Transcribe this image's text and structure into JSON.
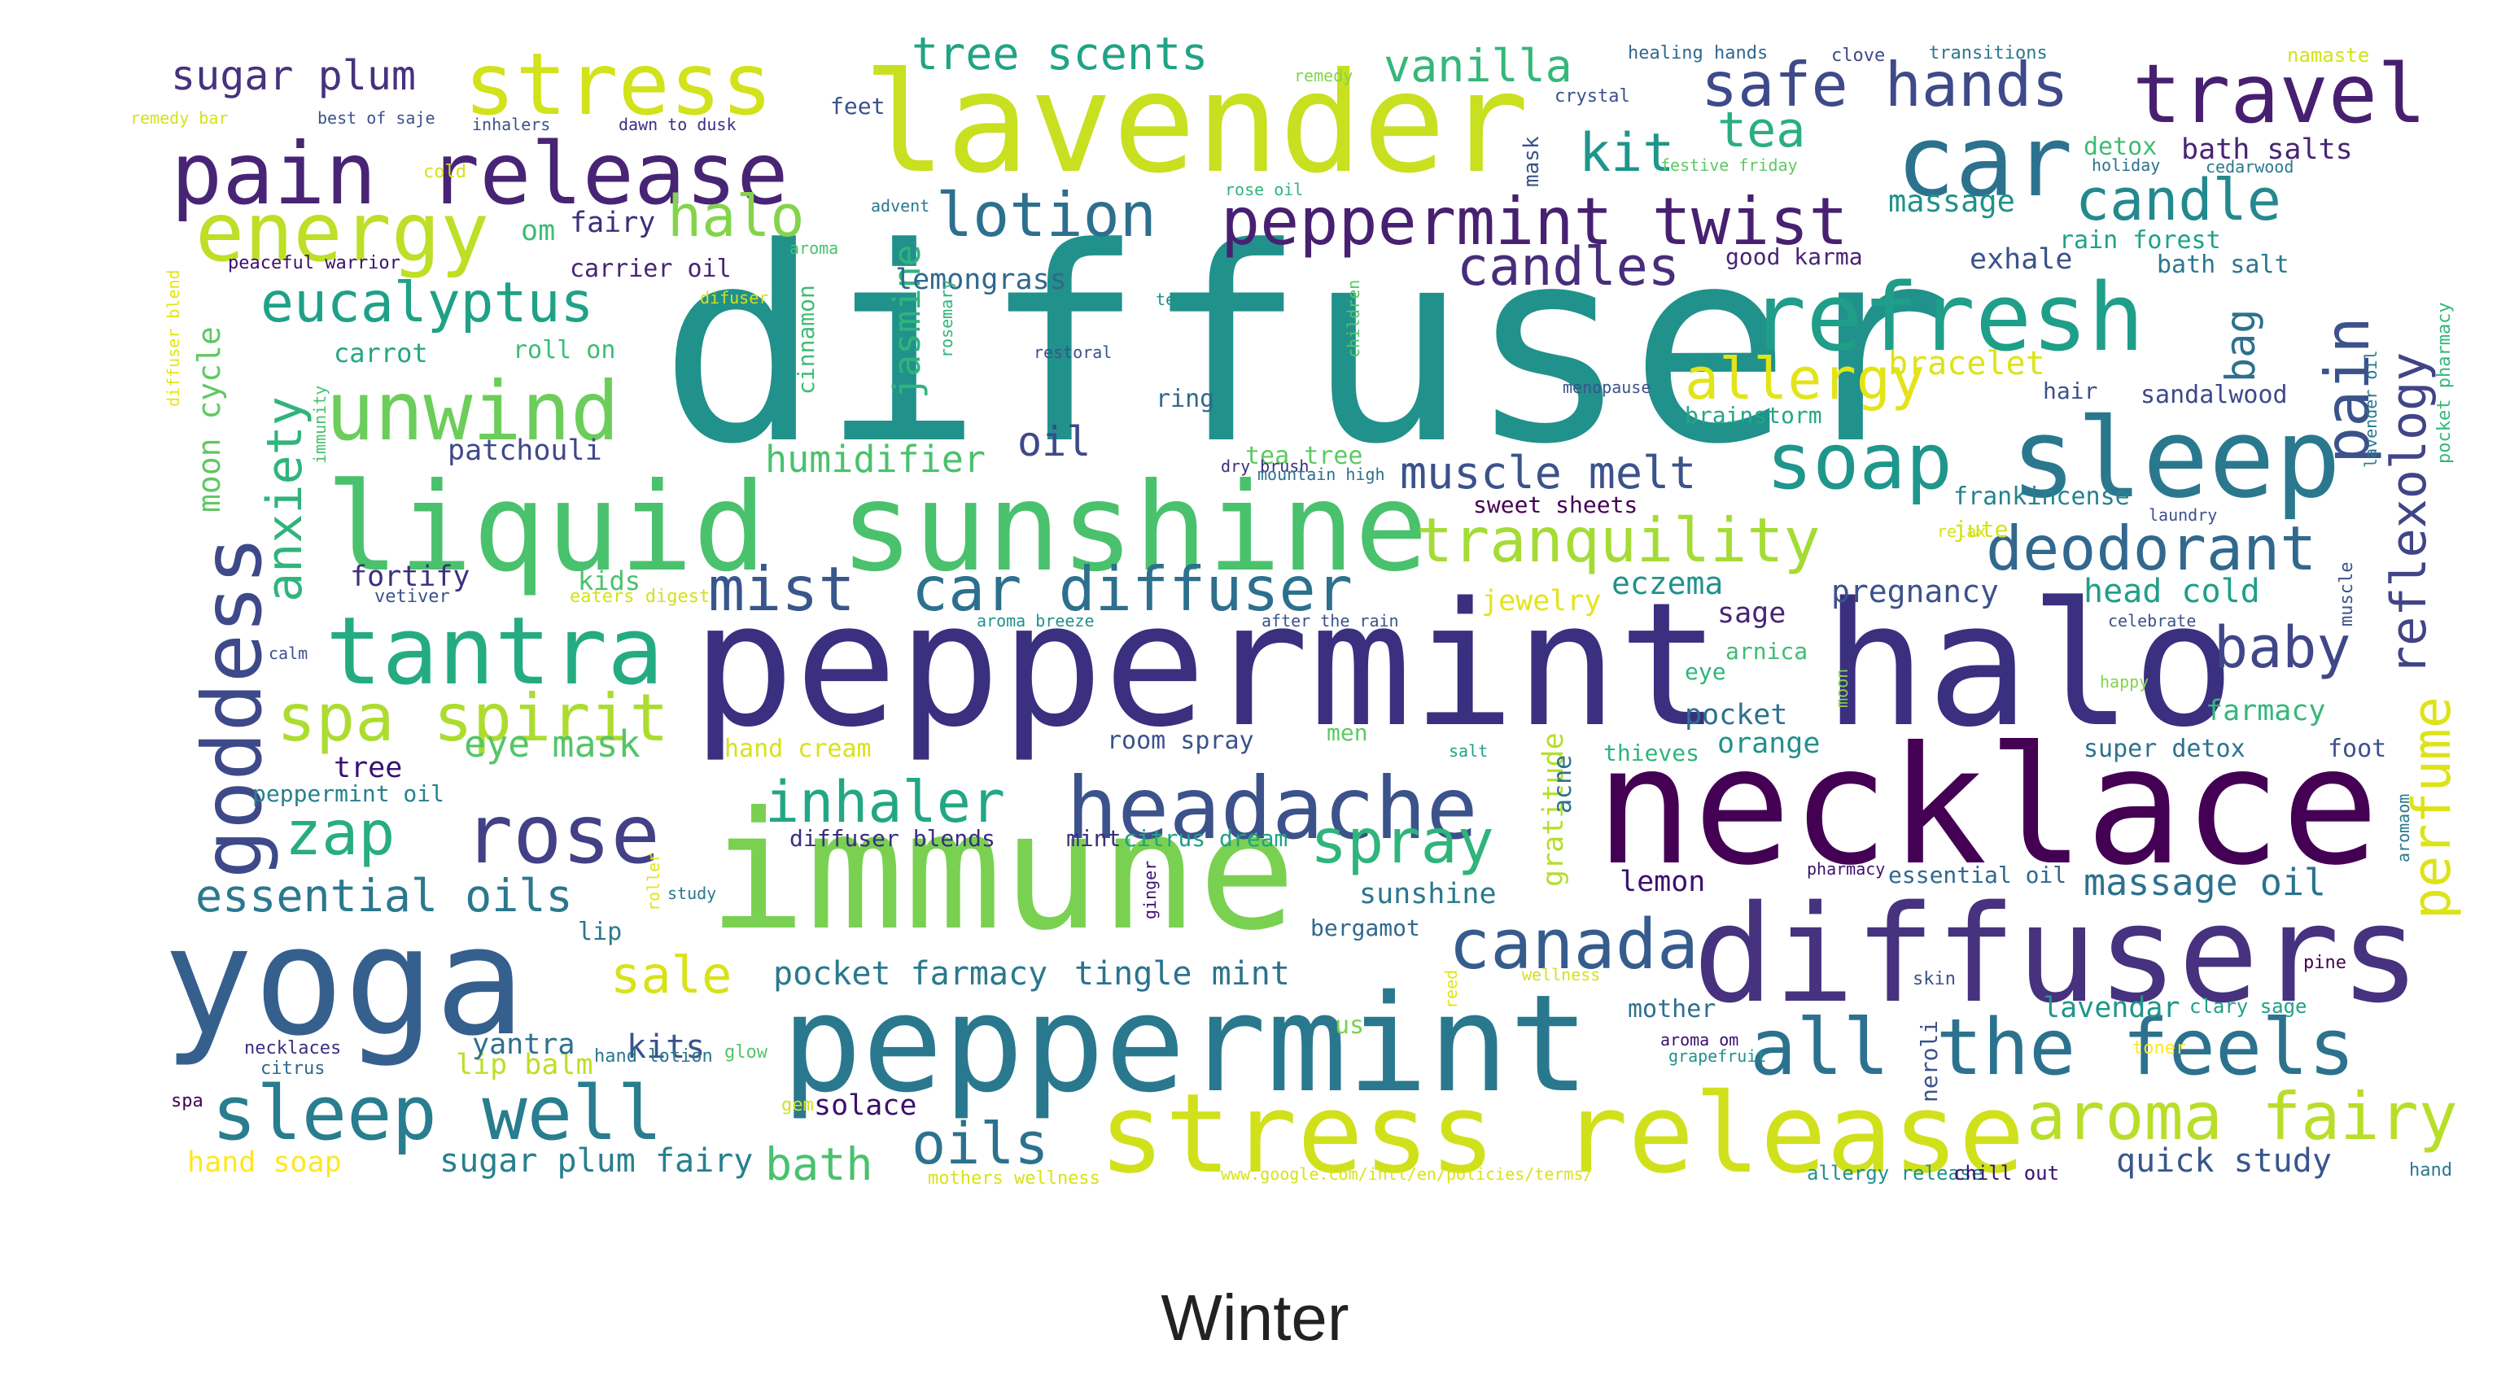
{
  "caption": "Winter",
  "words": [
    {
      "text": "diffuser",
      "color": "#21918c"
    },
    {
      "text": "peppermint halo",
      "color": "#3b2f80"
    },
    {
      "text": "necklace",
      "color": "#440154"
    },
    {
      "text": "immune",
      "color": "#7ad151"
    },
    {
      "text": "yoga",
      "color": "#355f8d"
    },
    {
      "text": "lavender",
      "color": "#c8e020"
    },
    {
      "text": "peppermint",
      "color": "#2a788e"
    },
    {
      "text": "diffusers",
      "color": "#46327e"
    },
    {
      "text": "liquid sunshine",
      "color": "#4ac16d"
    },
    {
      "text": "stress release",
      "color": "#d0e11c"
    },
    {
      "text": "sleep",
      "color": "#2a788e"
    },
    {
      "text": "car",
      "color": "#2c728e"
    },
    {
      "text": "refresh",
      "color": "#1f9e89"
    },
    {
      "text": "tantra",
      "color": "#25ab82"
    },
    {
      "text": "headache",
      "color": "#3b528b"
    },
    {
      "text": "stress",
      "color": "#d2e21b"
    },
    {
      "text": "pain release",
      "color": "#482475"
    },
    {
      "text": "goddess",
      "color": "#3e4989"
    },
    {
      "text": "rose",
      "color": "#424086"
    },
    {
      "text": "travel",
      "color": "#481f70"
    },
    {
      "text": "unwind",
      "color": "#6ccd5a"
    },
    {
      "text": "energy",
      "color": "#bddf26"
    },
    {
      "text": "all the feels",
      "color": "#2c728e"
    },
    {
      "text": "sleep well",
      "color": "#287d8e"
    },
    {
      "text": "canada",
      "color": "#365c8d"
    },
    {
      "text": "soap",
      "color": "#1f968b"
    },
    {
      "text": "aroma fairy",
      "color": "#b8de29"
    },
    {
      "text": "peppermint twist",
      "color": "#482071"
    },
    {
      "text": "safe hands",
      "color": "#3e4a89"
    },
    {
      "text": "deodorant",
      "color": "#31688e"
    },
    {
      "text": "car diffuser",
      "color": "#2d708e"
    },
    {
      "text": "mist",
      "color": "#39568c"
    },
    {
      "text": "spa spirit",
      "color": "#addc30"
    },
    {
      "text": "tranquility",
      "color": "#a5db36"
    },
    {
      "text": "inhaler",
      "color": "#22a785"
    },
    {
      "text": "spray",
      "color": "#2fb47c"
    },
    {
      "text": "perfume",
      "color": "#dde318"
    },
    {
      "text": "reflexology",
      "color": "#414487"
    },
    {
      "text": "pain",
      "color": "#3b528b"
    },
    {
      "text": "zap",
      "color": "#27ad81"
    },
    {
      "text": "lotion",
      "color": "#2d708e"
    },
    {
      "text": "halo",
      "color": "#84d44b"
    },
    {
      "text": "eucalyptus",
      "color": "#1fa187"
    },
    {
      "text": "baby",
      "color": "#404688"
    },
    {
      "text": "allergy",
      "color": "#e2e418"
    },
    {
      "text": "candle",
      "color": "#23898e"
    },
    {
      "text": "tea",
      "color": "#29af7f"
    },
    {
      "text": "kit",
      "color": "#1f958b"
    },
    {
      "text": "oils",
      "color": "#2c728e"
    },
    {
      "text": "muscle melt",
      "color": "#3b528b"
    },
    {
      "text": "candles",
      "color": "#472d7b"
    },
    {
      "text": "essential oils",
      "color": "#2a788e"
    },
    {
      "text": "sale",
      "color": "#d8e219"
    },
    {
      "text": "sugar plum",
      "color": "#46327e"
    },
    {
      "text": "anxiety",
      "color": "#2fb47c"
    },
    {
      "text": "vanilla",
      "color": "#35b779"
    },
    {
      "text": "tree scents",
      "color": "#20a386"
    },
    {
      "text": "bath",
      "color": "#4ac16d"
    },
    {
      "text": "massage oil",
      "color": "#2c728e"
    },
    {
      "text": "jasmine",
      "color": "#2fb47c"
    },
    {
      "text": "bag",
      "color": "#2d708e"
    },
    {
      "text": "quick study",
      "color": "#39568c"
    },
    {
      "text": "eye mask",
      "color": "#54c568"
    },
    {
      "text": "oil",
      "color": "#3e4989"
    },
    {
      "text": "pocket farmacy",
      "color": "#2a788e"
    },
    {
      "text": "tingle mint",
      "color": "#2c728e"
    },
    {
      "text": "sugar plum fairy",
      "color": "#27808e"
    },
    {
      "text": "humidifier",
      "color": "#4ac16d"
    },
    {
      "text": "lemongrass",
      "color": "#31688e"
    },
    {
      "text": "massage",
      "color": "#21918c"
    },
    {
      "text": "bath salts",
      "color": "#482475"
    },
    {
      "text": "bracelet",
      "color": "#dde318"
    },
    {
      "text": "head cold",
      "color": "#1f9e89"
    },
    {
      "text": "eczema",
      "color": "#21918c"
    },
    {
      "text": "pregnancy",
      "color": "#3b528b"
    },
    {
      "text": "lip balm",
      "color": "#bddf26"
    },
    {
      "text": "moon cycle",
      "color": "#5ec962"
    },
    {
      "text": "exhale",
      "color": "#3b528b"
    },
    {
      "text": "farmacy",
      "color": "#35b779"
    },
    {
      "text": "hand soap",
      "color": "#fde725"
    },
    {
      "text": "kits",
      "color": "#3b528b"
    },
    {
      "text": "yantra",
      "color": "#2d708e"
    },
    {
      "text": "sunshine",
      "color": "#2a788e"
    },
    {
      "text": "solace",
      "color": "#3b0f70"
    },
    {
      "text": "patchouli",
      "color": "#3e4989"
    },
    {
      "text": "fortify",
      "color": "#3b2f80"
    },
    {
      "text": "gratitude",
      "color": "#b5de2b"
    },
    {
      "text": "lemon",
      "color": "#3b0f70"
    },
    {
      "text": "jewelry",
      "color": "#e5e419"
    },
    {
      "text": "sage",
      "color": "#482475"
    },
    {
      "text": "pocket",
      "color": "#2d708e"
    },
    {
      "text": "orange",
      "color": "#21918c"
    },
    {
      "text": "lavendar",
      "color": "#1f968b"
    },
    {
      "text": "mother",
      "color": "#2d708e"
    },
    {
      "text": "sandalwood",
      "color": "#3e4989"
    },
    {
      "text": "brainstorm",
      "color": "#22a785"
    },
    {
      "text": "frankincense",
      "color": "#26828e"
    },
    {
      "text": "super detox",
      "color": "#2c728e"
    },
    {
      "text": "foot",
      "color": "#3b528b"
    },
    {
      "text": "detox",
      "color": "#3dbc74"
    },
    {
      "text": "rain forest",
      "color": "#1fa187"
    },
    {
      "text": "bath salt",
      "color": "#2a788e"
    },
    {
      "text": "room spray",
      "color": "#3b528b"
    },
    {
      "text": "diffuser blends",
      "color": "#3b2f80"
    },
    {
      "text": "mint",
      "color": "#3b2f80"
    },
    {
      "text": "citrus dream",
      "color": "#1fa187"
    },
    {
      "text": "essential oil",
      "color": "#31688e"
    },
    {
      "text": "bergamot",
      "color": "#31688e"
    },
    {
      "text": "lip",
      "color": "#2a788e"
    },
    {
      "text": "tree",
      "color": "#3b0f70"
    },
    {
      "text": "peppermint oil",
      "color": "#27808e"
    },
    {
      "text": "hand cream",
      "color": "#d8e219"
    },
    {
      "text": "carrier oil",
      "color": "#482475"
    },
    {
      "text": "fairy",
      "color": "#3b2f80"
    },
    {
      "text": "om",
      "color": "#3dbc74"
    },
    {
      "text": "carrot",
      "color": "#22a785"
    },
    {
      "text": "roll on",
      "color": "#3dbc74"
    },
    {
      "text": "kids",
      "color": "#4ac16d"
    },
    {
      "text": "acne",
      "color": "#2c728e"
    },
    {
      "text": "thieves",
      "color": "#2fb47c"
    },
    {
      "text": "arnica",
      "color": "#3dbc74"
    },
    {
      "text": "eye",
      "color": "#2fb47c"
    },
    {
      "text": "tea tree",
      "color": "#5ec962"
    },
    {
      "text": "ring",
      "color": "#31688e"
    },
    {
      "text": "hair",
      "color": "#3b528b"
    },
    {
      "text": "jute",
      "color": "#d2e21b"
    },
    {
      "text": "good karma",
      "color": "#482475"
    },
    {
      "text": "cinnamon",
      "color": "#3dbc74"
    },
    {
      "text": "sweet sheets",
      "color": "#440154"
    },
    {
      "text": "men",
      "color": "#5ec962"
    },
    {
      "text": "feet",
      "color": "#3b528b"
    },
    {
      "text": "necklaces",
      "color": "#3b2f80"
    },
    {
      "text": "citrus",
      "color": "#31688e"
    },
    {
      "text": "spa",
      "color": "#440154"
    },
    {
      "text": "hand lotion",
      "color": "#2a788e"
    },
    {
      "text": "gem",
      "color": "#d2e21b"
    },
    {
      "text": "glow",
      "color": "#54c568"
    },
    {
      "text": "us",
      "color": "#7ad151"
    },
    {
      "text": "neroli",
      "color": "#3b528b"
    },
    {
      "text": "clary sage",
      "color": "#1fa187"
    },
    {
      "text": "toner",
      "color": "#fde725"
    },
    {
      "text": "pine",
      "color": "#440154"
    },
    {
      "text": "skin",
      "color": "#3b528b"
    },
    {
      "text": "hand",
      "color": "#2a788e"
    },
    {
      "text": "mask",
      "color": "#3b528b"
    },
    {
      "text": "crystal",
      "color": "#3b528b"
    },
    {
      "text": "healing hands",
      "color": "#31688e"
    },
    {
      "text": "clove",
      "color": "#3e4989"
    },
    {
      "text": "transitions",
      "color": "#2a788e"
    },
    {
      "text": "namaste",
      "color": "#d2e21b"
    },
    {
      "text": "remedy",
      "color": "#84d44b"
    },
    {
      "text": "remedy bar",
      "color": "#d2e21b"
    },
    {
      "text": "best of saje",
      "color": "#3b528b"
    },
    {
      "text": "inhalers",
      "color": "#3b528b"
    },
    {
      "text": "dawn to dusk",
      "color": "#3b2f80"
    },
    {
      "text": "festive friday",
      "color": "#5ec962"
    },
    {
      "text": "holiday",
      "color": "#2d708e"
    },
    {
      "text": "cedarwood",
      "color": "#2a788e"
    },
    {
      "text": "advent",
      "color": "#2a788e"
    },
    {
      "text": "rose oil",
      "color": "#2fb47c"
    },
    {
      "text": "aroma",
      "color": "#4ac16d"
    },
    {
      "text": "cold",
      "color": "#d8e219"
    },
    {
      "text": "peaceful warrior",
      "color": "#3b0f70"
    },
    {
      "text": "difuser",
      "color": "#d2e21b"
    },
    {
      "text": "tea tree oil",
      "color": "#21918c"
    },
    {
      "text": "restoral",
      "color": "#3b528b"
    },
    {
      "text": "rosemary",
      "color": "#2fb47c"
    },
    {
      "text": "children",
      "color": "#54c568"
    },
    {
      "text": "menopause",
      "color": "#3b528b"
    },
    {
      "text": "diffuser blend",
      "color": "#e2e418"
    },
    {
      "text": "immunity",
      "color": "#4ac16d"
    },
    {
      "text": "dry brush",
      "color": "#3b2f80"
    },
    {
      "text": "mountain high",
      "color": "#2d708e"
    },
    {
      "text": "relax",
      "color": "#d8e219"
    },
    {
      "text": "laundry",
      "color": "#3b528b"
    },
    {
      "text": "lavender oil",
      "color": "#2a788e"
    },
    {
      "text": "pocket pharmacy",
      "color": "#35b779"
    },
    {
      "text": "muscle",
      "color": "#3b528b"
    },
    {
      "text": "vetiver",
      "color": "#3b528b"
    },
    {
      "text": "eaters digest",
      "color": "#d2e21b"
    },
    {
      "text": "calm",
      "color": "#3b528b"
    },
    {
      "text": "aroma breeze",
      "color": "#21918c"
    },
    {
      "text": "after the rain",
      "color": "#3b528b"
    },
    {
      "text": "celebrate",
      "color": "#3b528b"
    },
    {
      "text": "happy",
      "color": "#84d44b"
    },
    {
      "text": "moon",
      "color": "#84d44b"
    },
    {
      "text": "salt",
      "color": "#1fa187"
    },
    {
      "text": "pharmacy",
      "color": "#3b0f70"
    },
    {
      "text": "aromaom",
      "color": "#2a788e"
    },
    {
      "text": "study",
      "color": "#2a788e"
    },
    {
      "text": "roller",
      "color": "#e2e418"
    },
    {
      "text": "ginger",
      "color": "#3b0f70"
    },
    {
      "text": "reed",
      "color": "#e2e418"
    },
    {
      "text": "wellness",
      "color": "#d2e21b"
    },
    {
      "text": "aroma om",
      "color": "#3b0f70"
    },
    {
      "text": "grapefruit",
      "color": "#21918c"
    },
    {
      "text": "mothers wellness",
      "color": "#d8e219"
    },
    {
      "text": "www.google.com/intl/en/policies/terms/",
      "color": "#d8e219"
    },
    {
      "text": "allergy release",
      "color": "#21918c"
    },
    {
      "text": "chill out",
      "color": "#3b0f70"
    }
  ]
}
